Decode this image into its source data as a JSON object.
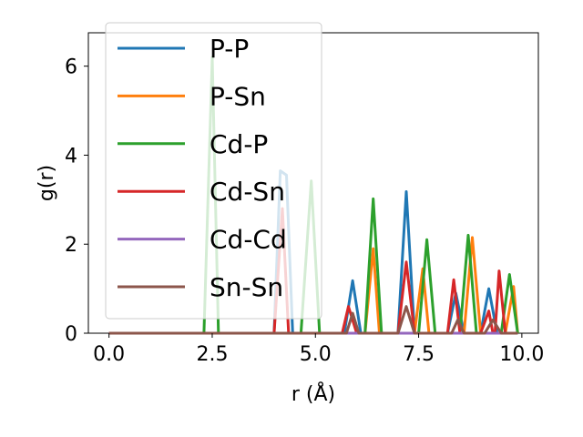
{
  "chart_data": {
    "type": "line",
    "title": "",
    "xlabel": "r (Å)",
    "ylabel": "g(r)",
    "xlim": [
      -0.5,
      10.4
    ],
    "ylim": [
      0,
      6.75
    ],
    "xticks": [
      0.0,
      2.5,
      5.0,
      7.5,
      10.0
    ],
    "xtick_labels": [
      "0.0",
      "2.5",
      "5.0",
      "7.5",
      "10.0"
    ],
    "yticks": [
      0,
      2,
      4,
      6
    ],
    "ytick_labels": [
      "0",
      "2",
      "4",
      "6"
    ],
    "grid": false,
    "legend_position": "top-left",
    "series": [
      {
        "name": "P-P",
        "color": "#1f77b4",
        "points": [
          [
            0,
            0
          ],
          [
            4.0,
            0
          ],
          [
            4.15,
            3.65
          ],
          [
            4.3,
            3.55
          ],
          [
            4.45,
            0
          ],
          [
            5.7,
            0
          ],
          [
            5.9,
            1.18
          ],
          [
            6.1,
            0
          ],
          [
            7.0,
            0
          ],
          [
            7.2,
            3.18
          ],
          [
            7.4,
            0
          ],
          [
            8.2,
            0
          ],
          [
            8.4,
            0.9
          ],
          [
            8.6,
            0
          ],
          [
            9.0,
            0
          ],
          [
            9.2,
            1.0
          ],
          [
            9.4,
            0
          ],
          [
            9.9,
            0
          ]
        ]
      },
      {
        "name": "P-Sn",
        "color": "#ff7f0e",
        "points": [
          [
            0,
            0
          ],
          [
            6.2,
            0
          ],
          [
            6.4,
            1.9
          ],
          [
            6.55,
            0
          ],
          [
            7.4,
            0
          ],
          [
            7.6,
            1.45
          ],
          [
            7.75,
            0
          ],
          [
            8.6,
            0
          ],
          [
            8.8,
            2.15
          ],
          [
            9.0,
            0
          ],
          [
            9.6,
            0
          ],
          [
            9.8,
            1.05
          ],
          [
            9.9,
            0
          ]
        ]
      },
      {
        "name": "Cd-P",
        "color": "#2ca02c",
        "points": [
          [
            0,
            0
          ],
          [
            2.3,
            0
          ],
          [
            2.5,
            6.2
          ],
          [
            2.65,
            0
          ],
          [
            4.65,
            0
          ],
          [
            4.9,
            3.42
          ],
          [
            5.1,
            0
          ],
          [
            6.2,
            0
          ],
          [
            6.4,
            3.02
          ],
          [
            6.6,
            0
          ],
          [
            7.5,
            0
          ],
          [
            7.7,
            2.1
          ],
          [
            7.9,
            0
          ],
          [
            8.5,
            0
          ],
          [
            8.7,
            2.2
          ],
          [
            8.9,
            0
          ],
          [
            9.5,
            0
          ],
          [
            9.7,
            1.32
          ],
          [
            9.9,
            0
          ]
        ]
      },
      {
        "name": "Cd-Sn",
        "color": "#d62728",
        "points": [
          [
            0,
            0
          ],
          [
            4.0,
            0
          ],
          [
            4.2,
            2.8
          ],
          [
            4.35,
            0
          ],
          [
            5.65,
            0
          ],
          [
            5.8,
            0.6
          ],
          [
            6.0,
            0
          ],
          [
            7.0,
            0
          ],
          [
            7.2,
            1.6
          ],
          [
            7.4,
            0
          ],
          [
            8.2,
            0
          ],
          [
            8.35,
            1.2
          ],
          [
            8.5,
            0
          ],
          [
            9.0,
            0
          ],
          [
            9.2,
            0.5
          ],
          [
            9.3,
            0
          ],
          [
            9.35,
            0
          ],
          [
            9.45,
            1.4
          ],
          [
            9.6,
            0
          ],
          [
            9.9,
            0
          ]
        ]
      },
      {
        "name": "Cd-Cd",
        "color": "#9467bd",
        "points": [
          [
            0,
            0
          ],
          [
            9.9,
            0
          ]
        ]
      },
      {
        "name": "Sn-Sn",
        "color": "#8c564b",
        "points": [
          [
            0,
            0
          ],
          [
            5.75,
            0
          ],
          [
            5.9,
            0.45
          ],
          [
            6.05,
            0
          ],
          [
            7.0,
            0
          ],
          [
            7.2,
            0.6
          ],
          [
            7.4,
            0
          ],
          [
            8.3,
            0
          ],
          [
            8.45,
            0.3
          ],
          [
            8.6,
            0
          ],
          [
            9.1,
            0
          ],
          [
            9.3,
            0.3
          ],
          [
            9.5,
            0
          ],
          [
            9.9,
            0
          ]
        ]
      }
    ]
  }
}
